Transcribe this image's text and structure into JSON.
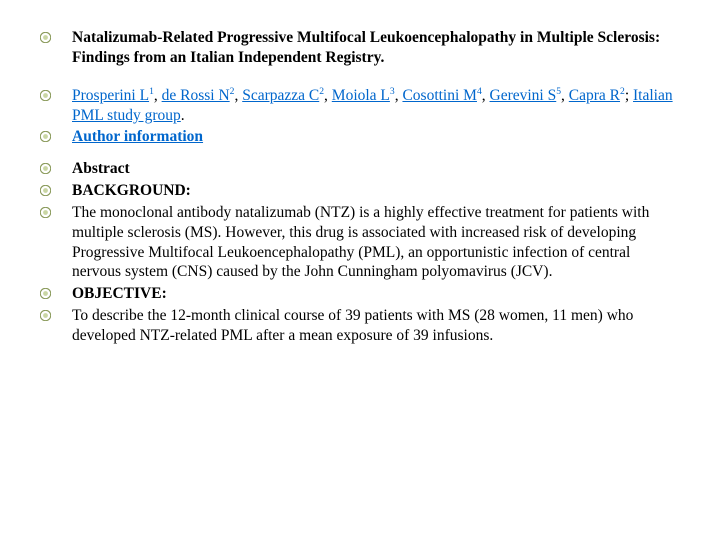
{
  "bullet": {
    "outer_color": "#8a9a5b",
    "inner_color": "#c9d6a3",
    "outer_r": 5.2,
    "inner_r": 2.4
  },
  "title": "Natalizumab-Related Progressive Multifocal Leukoencephalopathy in Multiple Sclerosis: Findings from an Italian Independent Registry.",
  "authors": [
    {
      "name": "Prosperini L",
      "aff": "1"
    },
    {
      "name": "de Rossi N",
      "aff": "2"
    },
    {
      "name": "Scarpazza C",
      "aff": "2"
    },
    {
      "name": "Moiola L",
      "aff": "3"
    },
    {
      "name": "Cosottini M",
      "aff": "4"
    },
    {
      "name": "Gerevini S",
      "aff": "5"
    },
    {
      "name": "Capra R",
      "aff": "2"
    }
  ],
  "authors_tail": "Italian PML study group",
  "author_info": "Author information",
  "abstract_label": "Abstract",
  "background_label": "BACKGROUND:",
  "background_text": "The monoclonal antibody natalizumab (NTZ) is a highly effective treatment for patients with multiple sclerosis (MS). However, this drug is associated with increased risk of developing Progressive Multifocal Leukoencephalopathy (PML), an opportunistic infection of central nervous system (CNS) caused by the John Cunningham polyomavirus (JCV).",
  "objective_label": "OBJECTIVE:",
  "objective_text": "To describe the 12-month clinical course of 39 patients with MS (28 women, 11 men) who developed NTZ-related PML after a mean exposure of 39 infusions."
}
